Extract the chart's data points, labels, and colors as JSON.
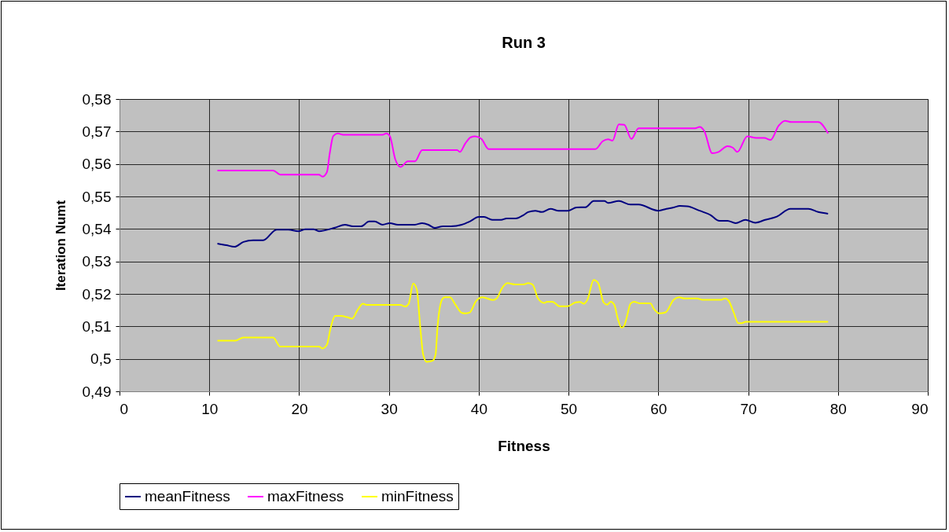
{
  "chart_data": {
    "type": "line",
    "title": "Run 3",
    "xlabel": "Fitness",
    "ylabel": "Iteration Numt",
    "xlim": [
      0,
      90
    ],
    "xticks": [
      0,
      10,
      20,
      30,
      40,
      50,
      60,
      70,
      80,
      90
    ],
    "ylim": [
      0.49,
      0.58
    ],
    "yticks": [
      {
        "value": 0.49,
        "label": "0,49"
      },
      {
        "value": 0.5,
        "label": "0,5"
      },
      {
        "value": 0.51,
        "label": "0,51"
      },
      {
        "value": 0.52,
        "label": "0,52"
      },
      {
        "value": 0.53,
        "label": "0,53"
      },
      {
        "value": 0.54,
        "label": "0,54"
      },
      {
        "value": 0.55,
        "label": "0,55"
      },
      {
        "value": 0.56,
        "label": "0,56"
      },
      {
        "value": 0.57,
        "label": "0,57"
      },
      {
        "value": 0.58,
        "label": "0,58"
      }
    ],
    "grid": true,
    "legend": "bottom",
    "marker": "none",
    "line_style": "solid",
    "series": [
      {
        "name": "meanFitness",
        "color": "#000080",
        "x": [
          10.9,
          11.9,
          12.8,
          13.8,
          14.9,
          16.0,
          17.5,
          18.8,
          19.9,
          20.7,
          21.6,
          22.2,
          24.0,
          25.1,
          26.0,
          26.9,
          27.8,
          28.4,
          29.3,
          30.1,
          31.0,
          32.9,
          33.7,
          34.4,
          35.1,
          36.0,
          36.9,
          38.1,
          39.0,
          40.0,
          40.6,
          41.5,
          42.5,
          43.1,
          44.1,
          45.0,
          45.5,
          46.3,
          47.0,
          48.0,
          48.9,
          49.9,
          50.9,
          51.9,
          52.8,
          54.0,
          54.4,
          55.6,
          56.9,
          57.8,
          60.0,
          60.9,
          61.7,
          62.4,
          63.2,
          64.6,
          65.8,
          66.8,
          67.7,
          68.6,
          69.7,
          70.8,
          71.9,
          73.2,
          74.7,
          76.7,
          77.8,
          78.9
        ],
        "values": [
          0.5355,
          0.535,
          0.5345,
          0.536,
          0.5365,
          0.5365,
          0.5398,
          0.5398,
          0.5393,
          0.5399,
          0.5399,
          0.5393,
          0.5404,
          0.5413,
          0.5408,
          0.5408,
          0.5423,
          0.5423,
          0.5413,
          0.5418,
          0.5413,
          0.5413,
          0.5418,
          0.5413,
          0.5403,
          0.5408,
          0.5408,
          0.5413,
          0.5423,
          0.5437,
          0.5437,
          0.5428,
          0.5428,
          0.5432,
          0.5432,
          0.5443,
          0.5452,
          0.5456,
          0.5452,
          0.5462,
          0.5456,
          0.5456,
          0.5466,
          0.5467,
          0.5486,
          0.5486,
          0.548,
          0.5486,
          0.5475,
          0.5475,
          0.5456,
          0.5462,
          0.5466,
          0.5471,
          0.547,
          0.5456,
          0.5443,
          0.5425,
          0.5425,
          0.5418,
          0.5428,
          0.5419,
          0.5428,
          0.5438,
          0.5462,
          0.5462,
          0.5452,
          0.5447
        ]
      },
      {
        "name": "maxFitness",
        "color": "#ff00ff",
        "x": [
          10.9,
          17.1,
          17.9,
          22.2,
          22.6,
          23.1,
          23.4,
          23.8,
          24.3,
          24.9,
          29.3,
          29.7,
          30.1,
          30.7,
          31.3,
          32.1,
          32.9,
          33.7,
          37.6,
          37.9,
          38.5,
          39.1,
          39.6,
          40.3,
          41.1,
          53.0,
          53.8,
          54.4,
          54.9,
          55.6,
          56.2,
          57.0,
          57.8,
          64.1,
          64.6,
          65.1,
          66.0,
          66.7,
          67.7,
          68.3,
          68.8,
          69.9,
          70.9,
          71.8,
          72.5,
          73.4,
          74.1,
          74.8,
          77.8,
          78.9
        ],
        "values": [
          0.558,
          0.558,
          0.5567,
          0.5567,
          0.5561,
          0.5575,
          0.5631,
          0.5686,
          0.5694,
          0.569,
          0.569,
          0.5694,
          0.5686,
          0.5615,
          0.5591,
          0.5608,
          0.5608,
          0.5643,
          0.5643,
          0.5637,
          0.5663,
          0.5682,
          0.5685,
          0.5677,
          0.5646,
          0.5646,
          0.567,
          0.5676,
          0.5672,
          0.5722,
          0.5721,
          0.5677,
          0.571,
          0.571,
          0.5714,
          0.5702,
          0.5633,
          0.5637,
          0.5655,
          0.565,
          0.5637,
          0.5685,
          0.568,
          0.568,
          0.5674,
          0.5718,
          0.5733,
          0.5729,
          0.5729,
          0.5694
        ]
      },
      {
        "name": "minFitness",
        "color": "#ffff00",
        "x": [
          10.9,
          12.9,
          13.8,
          17.1,
          17.9,
          22.2,
          22.6,
          23.1,
          23.5,
          24.0,
          24.6,
          25.4,
          25.9,
          26.5,
          27.1,
          27.5,
          31.3,
          31.8,
          32.2,
          32.7,
          33.1,
          33.5,
          33.8,
          34.2,
          34.9,
          35.2,
          35.4,
          35.9,
          36.2,
          36.8,
          37.4,
          38.1,
          38.5,
          39.0,
          39.7,
          40.4,
          41.6,
          42.0,
          42.6,
          43.2,
          44.1,
          45.0,
          45.5,
          46.0,
          46.6,
          47.3,
          47.6,
          48.2,
          49.0,
          49.9,
          50.8,
          51.3,
          51.7,
          52.1,
          52.8,
          53.3,
          53.9,
          54.3,
          54.7,
          55.1,
          55.5,
          55.9,
          56.2,
          56.5,
          56.9,
          57.3,
          57.9,
          59.1,
          59.5,
          60.1,
          60.8,
          61.7,
          62.3,
          62.9,
          64.3,
          64.9,
          67.0,
          67.4,
          67.8,
          68.4,
          68.9,
          69.3,
          69.7,
          78.9
        ],
        "values": [
          0.5056,
          0.5056,
          0.5066,
          0.5066,
          0.5038,
          0.5038,
          0.5032,
          0.5044,
          0.5094,
          0.5132,
          0.5132,
          0.5128,
          0.5124,
          0.515,
          0.517,
          0.5166,
          0.5166,
          0.5161,
          0.517,
          0.5232,
          0.5214,
          0.5094,
          0.5015,
          0.4991,
          0.4995,
          0.5015,
          0.5094,
          0.5182,
          0.519,
          0.519,
          0.5167,
          0.5142,
          0.514,
          0.5143,
          0.5178,
          0.519,
          0.5181,
          0.5186,
          0.5218,
          0.5233,
          0.5229,
          0.5229,
          0.5233,
          0.5229,
          0.5186,
          0.5172,
          0.5176,
          0.5176,
          0.5162,
          0.5162,
          0.5174,
          0.5175,
          0.517,
          0.5182,
          0.5243,
          0.5233,
          0.5174,
          0.5167,
          0.5176,
          0.5166,
          0.5122,
          0.5096,
          0.5102,
          0.513,
          0.517,
          0.5176,
          0.5171,
          0.5171,
          0.5154,
          0.514,
          0.5143,
          0.5182,
          0.519,
          0.5186,
          0.5186,
          0.5182,
          0.5182,
          0.5186,
          0.518,
          0.5142,
          0.511,
          0.511,
          0.5114,
          0.5114
        ]
      }
    ]
  }
}
